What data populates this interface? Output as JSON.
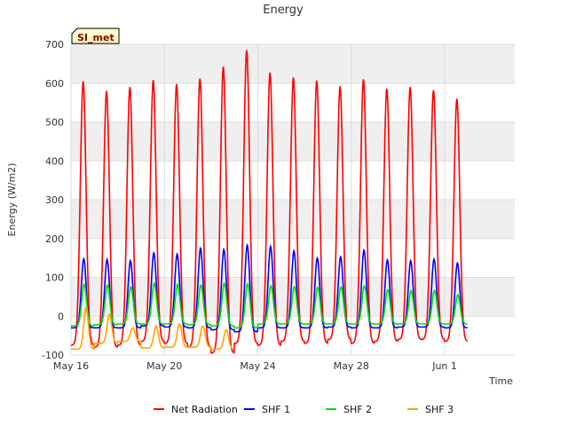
{
  "chart_data": {
    "type": "line",
    "title": "Energy",
    "xlabel": "Time",
    "ylabel": "Energy (W/m2)",
    "site_label": "SI_met",
    "ylim": [
      -100,
      700
    ],
    "yticks": [
      -100,
      0,
      100,
      200,
      300,
      400,
      500,
      600,
      700
    ],
    "xlim": [
      "2023-05-16",
      "2023-06-04"
    ],
    "xticks": [
      {
        "date": "2023-05-16",
        "label": "May 16"
      },
      {
        "date": "2023-05-20",
        "label": "May 20"
      },
      {
        "date": "2023-05-24",
        "label": "May 24"
      },
      {
        "date": "2023-05-28",
        "label": "May 28"
      },
      {
        "date": "2023-06-01",
        "label": "Jun 1"
      }
    ],
    "grid": true,
    "legend_position": "bottom",
    "series": [
      {
        "name": "Net Radiation",
        "color": "#ff0000",
        "daily_peaks": [
          {
            "date": "2023-05-16",
            "peak": 605,
            "night_min": -75
          },
          {
            "date": "2023-05-17",
            "peak": 580,
            "night_min": -80
          },
          {
            "date": "2023-05-18",
            "peak": 590,
            "night_min": -75
          },
          {
            "date": "2023-05-19",
            "peak": 608,
            "night_min": -65
          },
          {
            "date": "2023-05-20",
            "peak": 598,
            "night_min": -70
          },
          {
            "date": "2023-05-21",
            "peak": 612,
            "night_min": -80
          },
          {
            "date": "2023-05-22",
            "peak": 643,
            "night_min": -95
          },
          {
            "date": "2023-05-23",
            "peak": 685,
            "night_min": -70
          },
          {
            "date": "2023-05-24",
            "peak": 627,
            "night_min": -75
          },
          {
            "date": "2023-05-25",
            "peak": 615,
            "night_min": -65
          },
          {
            "date": "2023-05-26",
            "peak": 607,
            "night_min": -70
          },
          {
            "date": "2023-05-27",
            "peak": 592,
            "night_min": -60
          },
          {
            "date": "2023-05-28",
            "peak": 610,
            "night_min": -70
          },
          {
            "date": "2023-05-29",
            "peak": 586,
            "night_min": -65
          },
          {
            "date": "2023-05-30",
            "peak": 590,
            "night_min": -60
          },
          {
            "date": "2023-05-31",
            "peak": 582,
            "night_min": -60
          },
          {
            "date": "2023-06-01",
            "peak": 560,
            "night_min": -65
          }
        ]
      },
      {
        "name": "SHF 1",
        "color": "#0000ff",
        "daily_peaks": [
          {
            "date": "2023-05-16",
            "peak": 148,
            "night_min": -30
          },
          {
            "date": "2023-05-17",
            "peak": 146,
            "night_min": -30
          },
          {
            "date": "2023-05-18",
            "peak": 143,
            "night_min": -30
          },
          {
            "date": "2023-05-19",
            "peak": 163,
            "night_min": -25
          },
          {
            "date": "2023-05-20",
            "peak": 160,
            "night_min": -28
          },
          {
            "date": "2023-05-21",
            "peak": 175,
            "night_min": -30
          },
          {
            "date": "2023-05-22",
            "peak": 172,
            "night_min": -35
          },
          {
            "date": "2023-05-23",
            "peak": 183,
            "night_min": -40
          },
          {
            "date": "2023-05-24",
            "peak": 180,
            "night_min": -30
          },
          {
            "date": "2023-05-25",
            "peak": 168,
            "night_min": -30
          },
          {
            "date": "2023-05-26",
            "peak": 150,
            "night_min": -30
          },
          {
            "date": "2023-05-27",
            "peak": 153,
            "night_min": -28
          },
          {
            "date": "2023-05-28",
            "peak": 170,
            "night_min": -30
          },
          {
            "date": "2023-05-29",
            "peak": 145,
            "night_min": -30
          },
          {
            "date": "2023-05-30",
            "peak": 143,
            "night_min": -28
          },
          {
            "date": "2023-05-31",
            "peak": 147,
            "night_min": -28
          },
          {
            "date": "2023-06-01",
            "peak": 137,
            "night_min": -30
          }
        ]
      },
      {
        "name": "SHF 2",
        "color": "#00e000",
        "daily_peaks": [
          {
            "date": "2023-05-16",
            "peak": 82,
            "night_min": -25
          },
          {
            "date": "2023-05-17",
            "peak": 80,
            "night_min": -22
          },
          {
            "date": "2023-05-18",
            "peak": 75,
            "night_min": -20
          },
          {
            "date": "2023-05-19",
            "peak": 85,
            "night_min": -20
          },
          {
            "date": "2023-05-20",
            "peak": 82,
            "night_min": -20
          },
          {
            "date": "2023-05-21",
            "peak": 80,
            "night_min": -22
          },
          {
            "date": "2023-05-22",
            "peak": 85,
            "night_min": -25
          },
          {
            "date": "2023-05-23",
            "peak": 83,
            "night_min": -30
          },
          {
            "date": "2023-05-24",
            "peak": 78,
            "night_min": -20
          },
          {
            "date": "2023-05-25",
            "peak": 76,
            "night_min": -20
          },
          {
            "date": "2023-05-26",
            "peak": 74,
            "night_min": -20
          },
          {
            "date": "2023-05-27",
            "peak": 75,
            "night_min": -20
          },
          {
            "date": "2023-05-28",
            "peak": 78,
            "night_min": -20
          },
          {
            "date": "2023-05-29",
            "peak": 68,
            "night_min": -20
          },
          {
            "date": "2023-05-30",
            "peak": 66,
            "night_min": -20
          },
          {
            "date": "2023-05-31",
            "peak": 66,
            "night_min": -20
          },
          {
            "date": "2023-06-01",
            "peak": 55,
            "night_min": -20
          }
        ]
      },
      {
        "name": "SHF 3",
        "color": "#ffa500",
        "daily_peaks": [
          {
            "date": "2023-05-16",
            "peak": 22,
            "night_min": -85
          },
          {
            "date": "2023-05-17",
            "peak": 5,
            "night_min": -70
          },
          {
            "date": "2023-05-18",
            "peak": -30,
            "night_min": -65
          },
          {
            "date": "2023-05-19",
            "peak": -25,
            "night_min": -82
          },
          {
            "date": "2023-05-20",
            "peak": -20,
            "night_min": -80
          },
          {
            "date": "2023-05-21",
            "peak": -25,
            "night_min": -80
          },
          {
            "date": "2023-05-22",
            "peak": -35,
            "night_min": -85
          }
        ]
      }
    ]
  }
}
